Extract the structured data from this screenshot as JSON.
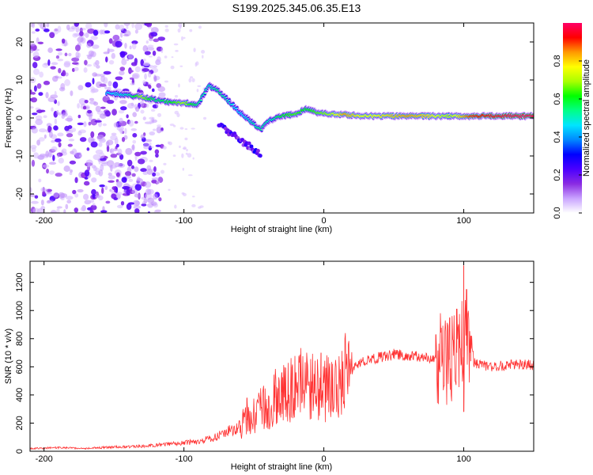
{
  "title": "S199.2025.345.06.35.E13",
  "chart_data": [
    {
      "type": "heatmap",
      "xlabel": "Height of straight line (km)",
      "ylabel": "Frequency (Hz)",
      "xlim": [
        -210,
        150
      ],
      "ylim": [
        -25,
        25
      ],
      "x_ticks": [
        -200,
        -100,
        0,
        100
      ],
      "y_ticks": [
        20,
        10,
        0,
        -10,
        -20
      ],
      "colorbar": {
        "label": "Normalized spectral amplitude",
        "range": [
          0,
          1
        ],
        "ticks": [
          0.0,
          0.2,
          0.4,
          0.6,
          0.8
        ],
        "colormap": [
          "#ffffff",
          "#c9a3ff",
          "#8a2be2",
          "#4b00ff",
          "#0000ff",
          "#0088ff",
          "#00e5ff",
          "#00ff88",
          "#00ff00",
          "#aaff00",
          "#ffff00",
          "#ff9900",
          "#ff0000",
          "#ff0066"
        ]
      },
      "ridge": [
        {
          "x": -155,
          "f": 6.5,
          "a": 0.45
        },
        {
          "x": -140,
          "f": 6.0,
          "a": 0.5
        },
        {
          "x": -130,
          "f": 5.5,
          "a": 0.7
        },
        {
          "x": -120,
          "f": 4.8,
          "a": 0.55
        },
        {
          "x": -110,
          "f": 4.2,
          "a": 0.6
        },
        {
          "x": -100,
          "f": 4.0,
          "a": 0.7
        },
        {
          "x": -90,
          "f": 3.5,
          "a": 0.55
        },
        {
          "x": -82,
          "f": 8.5,
          "a": 0.5
        },
        {
          "x": -75,
          "f": 7.0,
          "a": 0.55
        },
        {
          "x": -68,
          "f": 4.5,
          "a": 0.5
        },
        {
          "x": -60,
          "f": 1.5,
          "a": 0.45
        },
        {
          "x": -52,
          "f": -1.0,
          "a": 0.5
        },
        {
          "x": -45,
          "f": -3.0,
          "a": 0.55
        },
        {
          "x": -38,
          "f": -0.5,
          "a": 0.5
        },
        {
          "x": -30,
          "f": 0.5,
          "a": 0.6
        },
        {
          "x": -20,
          "f": 1.0,
          "a": 0.65
        },
        {
          "x": -12,
          "f": 2.5,
          "a": 0.6
        },
        {
          "x": -5,
          "f": 1.5,
          "a": 0.65
        },
        {
          "x": 5,
          "f": 1.0,
          "a": 0.7
        },
        {
          "x": 15,
          "f": 0.8,
          "a": 0.85
        },
        {
          "x": 30,
          "f": 0.5,
          "a": 0.75
        },
        {
          "x": 45,
          "f": 0.5,
          "a": 0.8
        },
        {
          "x": 60,
          "f": 0.5,
          "a": 0.85
        },
        {
          "x": 75,
          "f": 0.5,
          "a": 0.8
        },
        {
          "x": 90,
          "f": 0.5,
          "a": 0.7
        },
        {
          "x": 105,
          "f": 0.5,
          "a": 0.9
        },
        {
          "x": 120,
          "f": 0.5,
          "a": 0.95
        },
        {
          "x": 135,
          "f": 0.5,
          "a": 1.0
        },
        {
          "x": 150,
          "f": 0.5,
          "a": 1.0
        }
      ],
      "noise_region_x": [
        -210,
        -130
      ]
    },
    {
      "type": "line",
      "xlabel": "Height of straight line (km)",
      "ylabel": "SNR (10 * v/v)",
      "xlim": [
        -210,
        150
      ],
      "ylim": [
        0,
        1350
      ],
      "x_ticks": [
        -200,
        -100,
        0,
        100
      ],
      "y_ticks": [
        0,
        200,
        400,
        600,
        800,
        1000,
        1200
      ],
      "color": "#ff3333",
      "series": [
        {
          "name": "SNR",
          "x": [
            -210,
            -190,
            -170,
            -150,
            -130,
            -110,
            -100,
            -90,
            -80,
            -70,
            -60,
            -50,
            -40,
            -35,
            -30,
            -25,
            -20,
            -15,
            -10,
            -5,
            0,
            5,
            10,
            15,
            20,
            25,
            30,
            40,
            50,
            60,
            70,
            80,
            90,
            95,
            100,
            102,
            105,
            110,
            120,
            130,
            140,
            150
          ],
          "y": [
            20,
            25,
            20,
            30,
            35,
            50,
            60,
            70,
            90,
            130,
            180,
            260,
            320,
            380,
            420,
            450,
            470,
            480,
            460,
            440,
            450,
            480,
            500,
            540,
            580,
            620,
            640,
            670,
            690,
            680,
            670,
            660,
            650,
            700,
            720,
            750,
            640,
            620,
            600,
            610,
            620,
            610
          ]
        }
      ],
      "spikes": [
        {
          "x": -55,
          "y": 380
        },
        {
          "x": -35,
          "y": 470
        },
        {
          "x": -30,
          "y": 560
        },
        {
          "x": -20,
          "y": 560
        },
        {
          "x": -12,
          "y": 640
        },
        {
          "x": -2,
          "y": 700
        },
        {
          "x": 80,
          "y": 830
        },
        {
          "x": 90,
          "y": 950
        },
        {
          "x": 95,
          "y": 1010
        },
        {
          "x": 100,
          "y": 1320
        },
        {
          "x": 102,
          "y": 1150
        },
        {
          "x": 100,
          "y": 280
        },
        {
          "x": 105,
          "y": 820
        }
      ]
    }
  ]
}
